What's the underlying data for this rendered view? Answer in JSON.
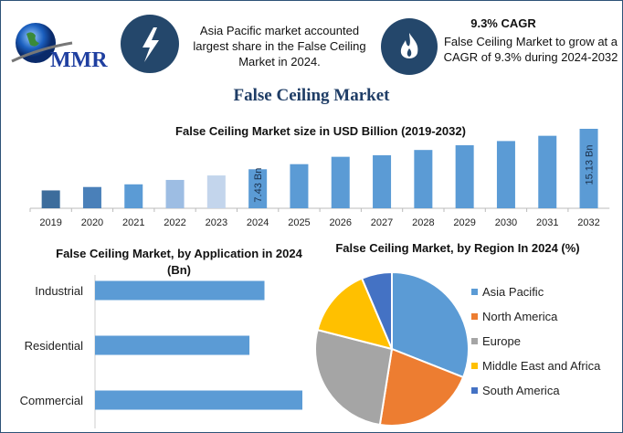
{
  "logo": {
    "text": "MMR"
  },
  "header": {
    "icon1": "lightning-bolt-icon",
    "note1": "Asia Pacific market accounted largest share in the False Ceiling Market in 2024.",
    "icon2": "flame-icon",
    "cagr_title": "9.3% CAGR",
    "cagr_text": "False Ceiling Market to grow at a CAGR of 9.3% during 2024-2032"
  },
  "title": "False Ceiling Market",
  "colors": {
    "accent": "#24476b",
    "bar": "#5b9bd5"
  },
  "chart_data": [
    {
      "type": "bar",
      "title": "False Ceiling Market size in USD Billion (2019-2032)",
      "categories": [
        "2019",
        "2020",
        "2021",
        "2022",
        "2023",
        "2024",
        "2025",
        "2026",
        "2027",
        "2028",
        "2029",
        "2030",
        "2031",
        "2032"
      ],
      "values": [
        3.4,
        4.05,
        4.56,
        5.4,
        6.25,
        7.43,
        8.4,
        9.8,
        10.1,
        11.1,
        12.0,
        12.8,
        13.8,
        15.13
      ],
      "colors": [
        "#3d6d9c",
        "#4a80b9",
        "#5b9bd5",
        "#9dbde3",
        "#c3d5ec",
        "#5b9bd5",
        "#5b9bd5",
        "#5b9bd5",
        "#5b9bd5",
        "#5b9bd5",
        "#5b9bd5",
        "#5b9bd5",
        "#5b9bd5",
        "#5b9bd5"
      ],
      "data_labels": {
        "2024": "7.43 Bn",
        "2032": "15.13 Bn"
      },
      "ylim": [
        0,
        16
      ],
      "grid": false
    },
    {
      "type": "bar",
      "orientation": "horizontal",
      "title": "False Ceiling Market, by Application in 2024 (Bn)",
      "categories": [
        "Industrial",
        "Residential",
        "Commercial"
      ],
      "values": [
        2.37,
        2.16,
        2.9
      ],
      "xlim": [
        0,
        3
      ],
      "grid": false
    },
    {
      "type": "pie",
      "title": "False Ceiling Market, by Region In 2024 (%)",
      "categories": [
        "Asia Pacific",
        "North America",
        "Europe",
        "Middle East and Africa",
        "South America"
      ],
      "values": [
        31,
        21.5,
        26.5,
        14.6,
        6.4
      ],
      "colors": [
        "#5b9bd5",
        "#ed7d31",
        "#a5a5a5",
        "#ffc000",
        "#4472c4"
      ],
      "legend": "right"
    }
  ]
}
